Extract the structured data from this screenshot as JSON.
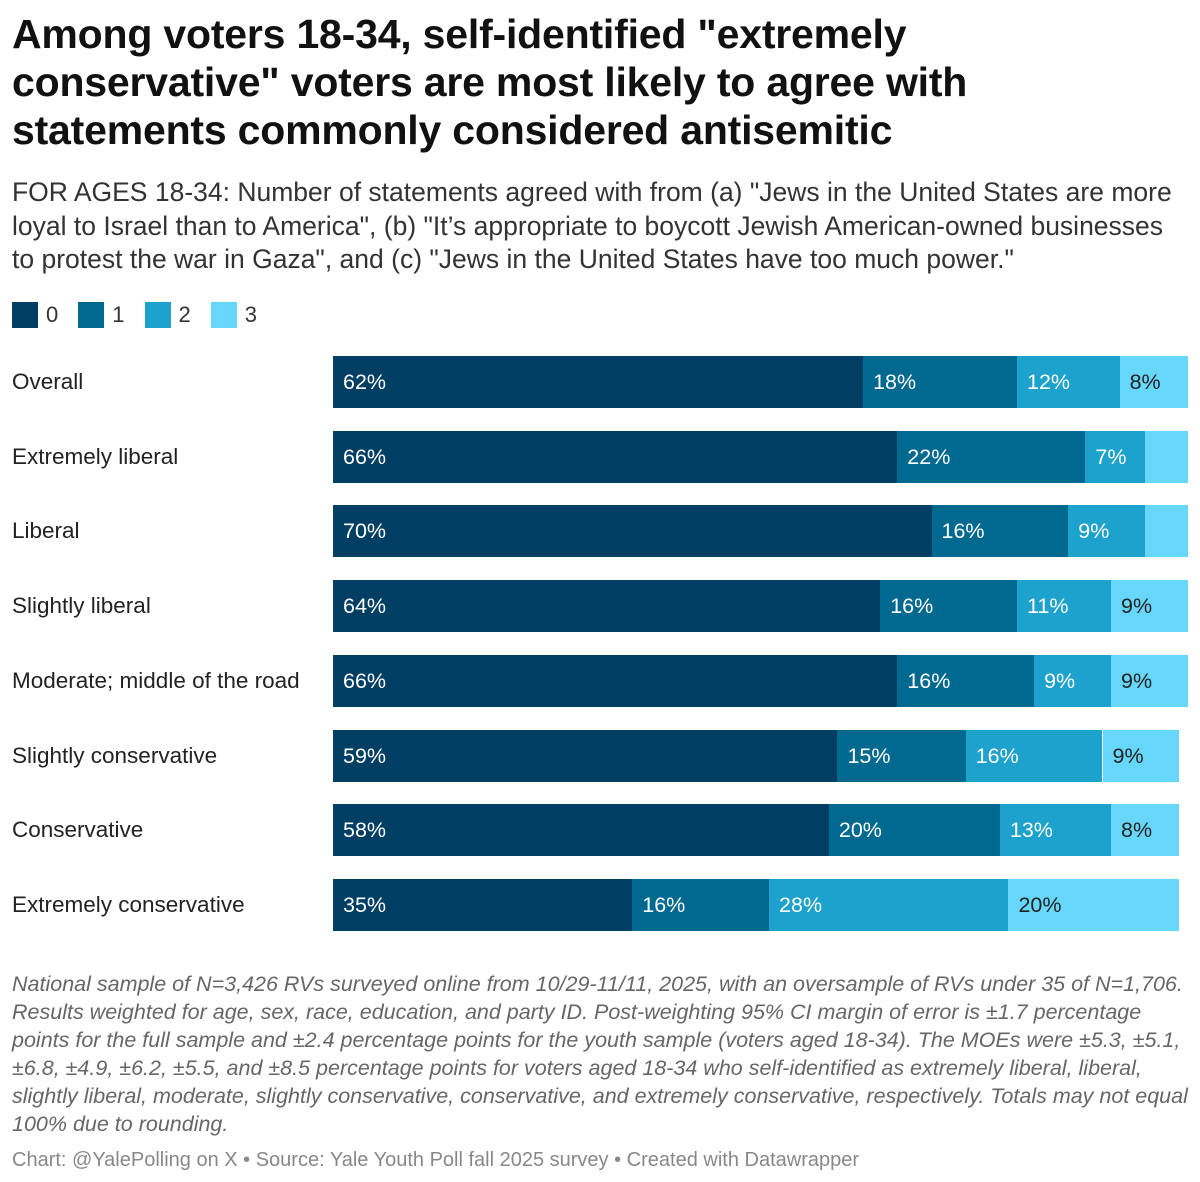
{
  "title": "Among voters 18-34, self-identified \"extremely conservative\" voters are most likely to agree with statements commonly considered antisemitic",
  "subtitle": "FOR AGES 18-34: Number of statements agreed with from (a) \"Jews in the United States are more loyal to Israel than to America\", (b) \"It’s appropriate to boycott Jewish American-owned businesses to protest the war in Gaza\", and (c) \"Jews in the United States have too much power.\"",
  "notes": "National sample of N=3,426 RVs surveyed online from 10/29-11/11, 2025, with an oversample of RVs under 35 of N=1,706. Results weighted for age, sex, race, education, and party ID. Post-weighting 95% CI margin of error is ±1.7 percentage points for the full sample and ±2.4 percentage points for the youth sample (voters aged 18-34). The MOEs were ±5.3, ±5.1, ±6.8, ±4.9, ±6.2, ±5.5, and ±8.5 percentage points for voters aged 18-34 who self-identified as extremely liberal, liberal, slightly liberal, moderate, slightly conservative, conservative, and extremely conservative, respectively. Totals may not equal 100% due to rounding.",
  "credit": "Chart: @YalePolling on X • Source: Yale Youth Poll fall 2025 survey • Created with Datawrapper",
  "chart_data": {
    "type": "bar",
    "orientation": "horizontal",
    "stacked": true,
    "unit": "%",
    "legend_placement": "top-left",
    "categories": [
      "Overall",
      "Extremely liberal",
      "Liberal",
      "Slightly liberal",
      "Moderate; middle of the road",
      "Slightly conservative",
      "Conservative",
      "Extremely conservative"
    ],
    "series": [
      {
        "name": "0",
        "color": "#003f63",
        "values": [
          62,
          66,
          70,
          64,
          66,
          59,
          58,
          35
        ],
        "labels": [
          "62%",
          "66%",
          "70%",
          "64%",
          "66%",
          "59%",
          "58%",
          "35%"
        ]
      },
      {
        "name": "1",
        "color": "#00698f",
        "values": [
          18,
          22,
          16,
          16,
          16,
          15,
          20,
          16
        ],
        "labels": [
          "18%",
          "22%",
          "16%",
          "16%",
          "16%",
          "15%",
          "20%",
          "16%"
        ]
      },
      {
        "name": "2",
        "color": "#1ca2cc",
        "values": [
          12,
          7,
          9,
          11,
          9,
          16,
          13,
          28
        ],
        "labels": [
          "12%",
          "7%",
          "9%",
          "11%",
          "9%",
          "16%",
          "13%",
          "28%"
        ]
      },
      {
        "name": "3",
        "color": "#66d6fa",
        "values": [
          8,
          5,
          5,
          9,
          9,
          9,
          8,
          20
        ],
        "labels": [
          "8%",
          "",
          "",
          "9%",
          "9%",
          "9%",
          "8%",
          "20%"
        ]
      }
    ]
  }
}
